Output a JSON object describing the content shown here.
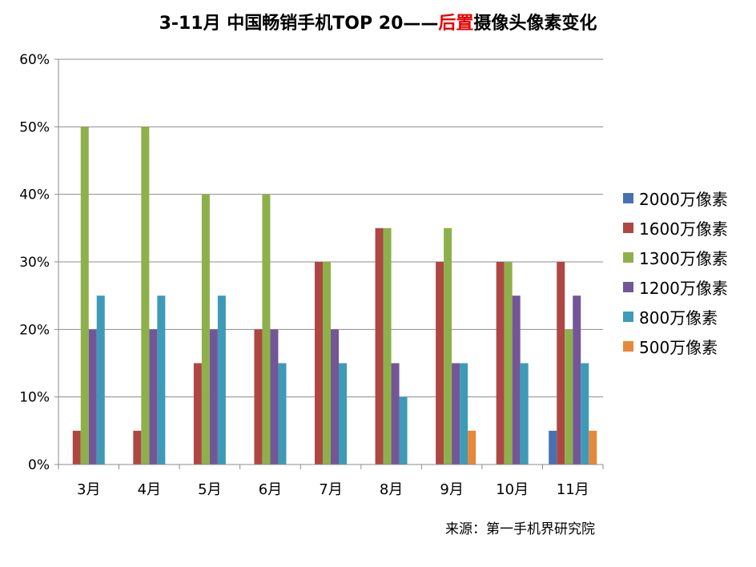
{
  "chart_data": {
    "type": "bar",
    "title_parts": [
      "3-11月 中国畅销手机TOP 20——",
      "后置",
      "摄像头像素变化"
    ],
    "title_highlight_color": "#e60000",
    "categories": [
      "3月",
      "4月",
      "5月",
      "6月",
      "7月",
      "8月",
      "9月",
      "10月",
      "11月"
    ],
    "ylim": [
      0,
      0.6
    ],
    "yticks": [
      "0%",
      "10%",
      "20%",
      "30%",
      "40%",
      "50%",
      "60%"
    ],
    "grid": true,
    "legend_position": "right",
    "series": [
      {
        "name": "2000万像素",
        "color": "#4672b4",
        "values": [
          0,
          0,
          0,
          0,
          0,
          0,
          0,
          0,
          0.05
        ]
      },
      {
        "name": "1600万像素",
        "color": "#ae4743",
        "values": [
          0.05,
          0.05,
          0.15,
          0.2,
          0.3,
          0.35,
          0.3,
          0.3,
          0.3
        ]
      },
      {
        "name": "1300万像素",
        "color": "#8eb04b",
        "values": [
          0.5,
          0.5,
          0.4,
          0.4,
          0.3,
          0.35,
          0.35,
          0.3,
          0.2
        ]
      },
      {
        "name": "1200万像素",
        "color": "#735697",
        "values": [
          0.2,
          0.2,
          0.2,
          0.2,
          0.2,
          0.15,
          0.15,
          0.25,
          0.25
        ]
      },
      {
        "name": "800万像素",
        "color": "#3d9bb8",
        "values": [
          0.25,
          0.25,
          0.25,
          0.15,
          0.15,
          0.1,
          0.15,
          0.15,
          0.15
        ]
      },
      {
        "name": "500万像素",
        "color": "#e5883a",
        "values": [
          0,
          0,
          0,
          0,
          0,
          0,
          0.05,
          0,
          0.05
        ]
      }
    ],
    "source": "来源：第一手机界研究院"
  }
}
